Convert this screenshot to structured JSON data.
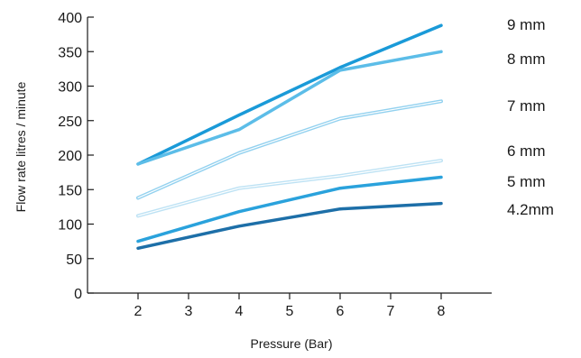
{
  "chart_data": {
    "type": "line",
    "title": "",
    "xlabel": "Pressure (Bar)",
    "ylabel": "Flow rate litres / minute",
    "xlim": [
      1,
      9
    ],
    "ylim": [
      0,
      400
    ],
    "x_ticks": [
      2,
      3,
      4,
      5,
      6,
      7,
      8
    ],
    "y_ticks": [
      0,
      50,
      100,
      150,
      200,
      250,
      300,
      350,
      400
    ],
    "x": [
      2,
      4,
      6,
      8
    ],
    "legend": "inline-right",
    "grid": false,
    "series": [
      {
        "name": "9 mm",
        "values": [
          187,
          258,
          327,
          388
        ],
        "color": "#1a9ad8",
        "style": "solid"
      },
      {
        "name": "8 mm",
        "values": [
          187,
          237,
          323,
          350
        ],
        "color": "#5cbde8",
        "style": "solid"
      },
      {
        "name": "7 mm",
        "values": [
          138,
          203,
          253,
          278
        ],
        "color": "#92d1ef",
        "style": "double"
      },
      {
        "name": "6 mm",
        "values": [
          112,
          152,
          170,
          192
        ],
        "color": "#bde2f4",
        "style": "double"
      },
      {
        "name": "5 mm",
        "values": [
          75,
          118,
          152,
          168
        ],
        "color": "#2aa2dc",
        "style": "solid"
      },
      {
        "name": "4.2mm",
        "values": [
          65,
          97,
          122,
          130
        ],
        "color": "#1d6fa8",
        "style": "solid"
      }
    ]
  }
}
